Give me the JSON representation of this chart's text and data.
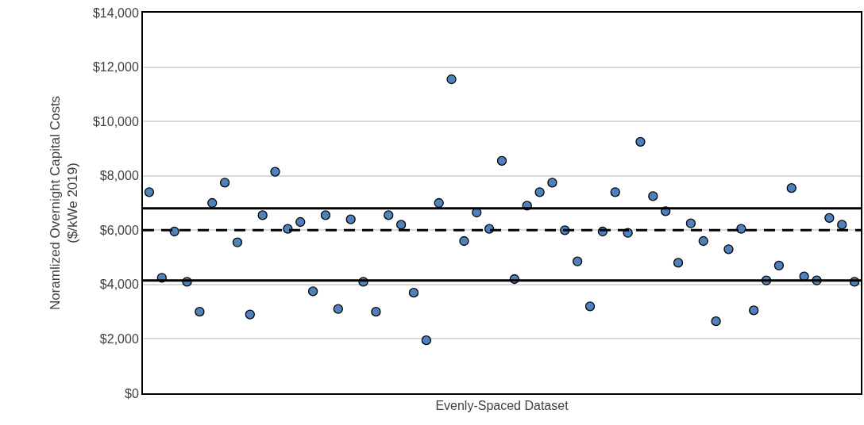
{
  "chart_data": {
    "type": "scatter",
    "xlabel": "Evenly-Spaced Dataset",
    "ylabel": "Noramlized Overnight Capital Costs\n($/kWe 2019)",
    "categories": [
      null,
      null,
      null,
      null,
      null,
      null,
      null,
      null,
      null,
      null,
      null,
      null,
      null,
      null,
      null,
      null,
      null,
      null,
      null,
      null,
      null,
      null,
      null,
      null,
      null,
      null,
      null,
      null,
      null,
      null,
      null,
      null,
      null,
      null,
      null,
      null,
      null,
      null,
      null,
      null,
      null,
      null,
      null,
      null,
      null,
      null,
      null,
      null,
      null,
      null,
      null,
      null,
      null,
      null,
      null,
      null,
      null
    ],
    "series": [
      {
        "color": "#4f81bd",
        "values": [
          7400,
          4250,
          5950,
          4100,
          3000,
          7000,
          7750,
          5550,
          2900,
          6550,
          8150,
          6050,
          6300,
          3750,
          6550,
          3100,
          6400,
          4100,
          3000,
          6550,
          6200,
          3700,
          1950,
          7000,
          11550,
          5600,
          6650,
          6050,
          8550,
          4200,
          6900,
          7400,
          7750,
          6000,
          4850,
          3200,
          5950,
          7400,
          5900,
          9250,
          7250,
          6700,
          4800,
          6250,
          5600,
          2650,
          5300,
          6050,
          3050,
          4150,
          4700,
          7550,
          4300,
          4150,
          6450,
          6200,
          4100
        ]
      }
    ],
    "marker": "circle",
    "ylim": [
      0,
      14000
    ],
    "yticks": [
      {
        "value": 0,
        "label": "$0"
      },
      {
        "value": 2000,
        "label": "$2,000"
      },
      {
        "value": 4000,
        "label": "$4,000"
      },
      {
        "value": 6000,
        "label": "$6,000"
      },
      {
        "value": 8000,
        "label": "$8,000"
      },
      {
        "value": 10000,
        "label": "$10,000"
      },
      {
        "value": 12000,
        "label": "$12,000"
      },
      {
        "value": 14000,
        "label": "$14,000"
      }
    ],
    "ref_lines": [
      {
        "axis": "y",
        "value": 6800,
        "color": "#000000",
        "line_style": "solid"
      },
      {
        "axis": "y",
        "value": 6000,
        "color": "#000000",
        "line_style": "dashed"
      },
      {
        "axis": "y",
        "value": 4150,
        "color": "#000000",
        "line_style": "solid"
      }
    ],
    "grid": "y"
  }
}
